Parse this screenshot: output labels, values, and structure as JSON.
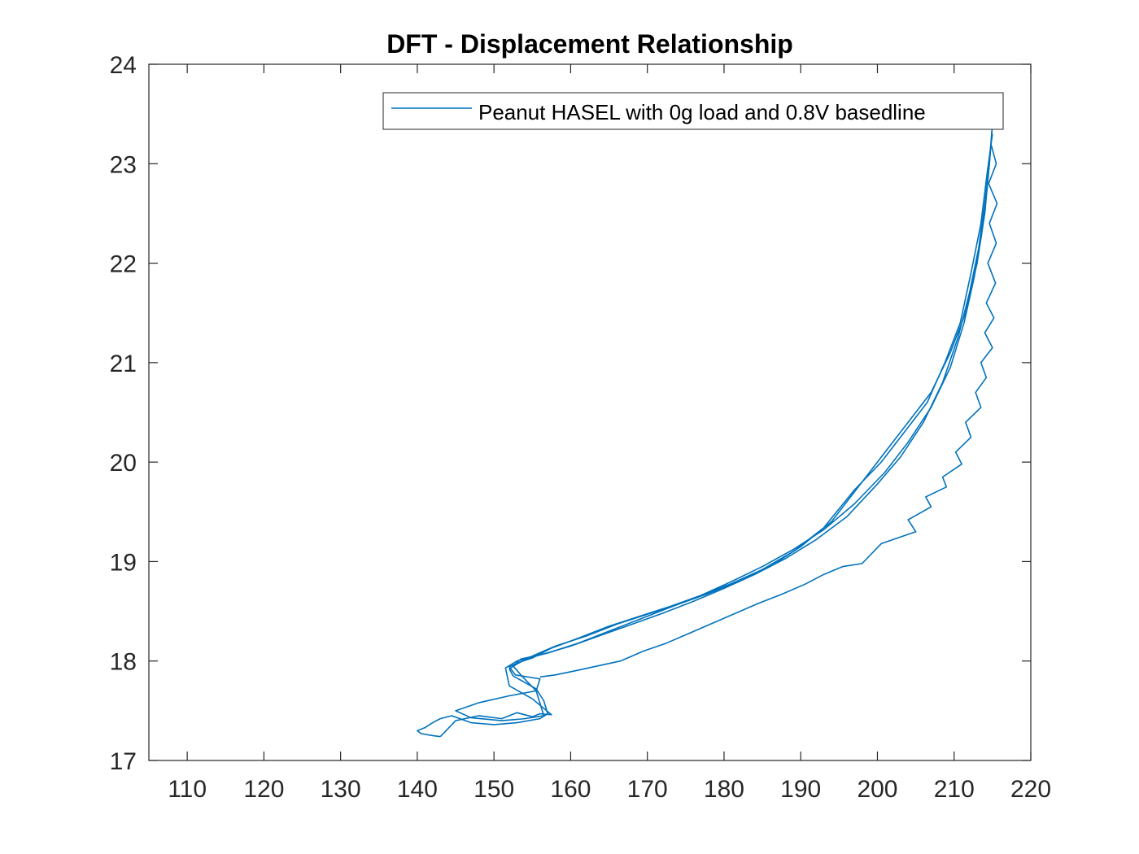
{
  "chart_data": {
    "type": "line",
    "title": "DFT - Displacement Relationship",
    "xlabel": "",
    "ylabel": "",
    "xlim": [
      105,
      220
    ],
    "ylim": [
      17,
      24
    ],
    "xticks": [
      110,
      120,
      130,
      140,
      150,
      160,
      170,
      180,
      190,
      200,
      210,
      220
    ],
    "yticks": [
      17,
      18,
      19,
      20,
      21,
      22,
      23,
      24
    ],
    "grid": false,
    "legend_position": "top-right",
    "colors": {
      "series": "#0072BD",
      "axis": "#262626"
    },
    "series": [
      {
        "name": "Peanut HASEL with 0g load and 0.8V basedline",
        "cycles": [
          {
            "x": [
              215.0,
              214.6,
              214.0,
              213.0,
              211.5,
              209.5,
              207.0,
              204.0,
              201.0,
              198.0,
              194.0,
              190.0,
              186.0,
              182.0,
              178.0,
              174.0,
              170.0,
              166.0,
              162.0,
              158.0,
              155.0,
              153.0,
              152.0,
              152.5,
              155.5,
              156.5,
              157.0,
              156.0,
              153.0,
              150.0,
              147.0,
              144.5,
              143.0,
              142.0,
              141.0,
              140.0,
              140.5,
              142.0,
              143.0
            ],
            "y": [
              23.4,
              23.0,
              22.5,
              22.0,
              21.5,
              21.1,
              20.7,
              20.4,
              20.1,
              19.8,
              19.4,
              19.15,
              18.95,
              18.8,
              18.68,
              18.57,
              18.47,
              18.37,
              18.25,
              18.15,
              18.05,
              17.97,
              17.92,
              17.85,
              17.72,
              17.6,
              17.47,
              17.42,
              17.38,
              17.36,
              17.38,
              17.45,
              17.42,
              17.38,
              17.33,
              17.3,
              17.27,
              17.25,
              17.24
            ]
          },
          {
            "x": [
              143.0,
              145.0,
              148.0,
              151.0,
              153.0,
              155.0,
              156.0,
              157.5,
              155.0,
              152.0,
              151.5,
              153.0,
              156.0,
              160.0,
              164.0,
              168.0,
              172.0,
              176.0,
              180.0,
              184.0,
              188.0,
              192.0,
              196.0,
              200.0,
              203.0,
              206.0,
              208.5,
              210.5,
              212.0,
              213.2,
              214.0,
              214.6,
              215.0
            ],
            "y": [
              17.24,
              17.4,
              17.45,
              17.42,
              17.48,
              17.44,
              17.47,
              17.46,
              17.62,
              17.75,
              17.93,
              18.0,
              18.06,
              18.15,
              18.26,
              18.37,
              18.48,
              18.6,
              18.73,
              18.87,
              19.03,
              19.22,
              19.45,
              19.78,
              20.05,
              20.4,
              20.8,
              21.25,
              21.7,
              22.15,
              22.6,
              23.0,
              23.4
            ]
          },
          {
            "x": [
              215.0,
              214.3,
              213.5,
              212.2,
              210.8,
              208.8,
              206.5,
              203.5,
              200.5,
              197.0,
              193.0,
              189.0,
              185.0,
              181.0,
              177.0,
              173.0,
              169.0,
              165.0,
              161.0,
              157.5,
              155.0,
              153.0,
              152.0,
              152.8,
              156.0,
              155.5,
              152.0,
              148.0,
              145.0,
              147.0,
              151.0,
              154.0,
              156.5
            ],
            "y": [
              23.3,
              22.9,
              22.4,
              21.9,
              21.4,
              21.0,
              20.6,
              20.3,
              20.0,
              19.72,
              19.34,
              19.1,
              18.92,
              18.78,
              18.66,
              18.55,
              18.45,
              18.35,
              18.23,
              18.13,
              18.03,
              17.98,
              17.94,
              17.86,
              17.82,
              17.7,
              17.65,
              17.58,
              17.5,
              17.43,
              17.4,
              17.42,
              17.45
            ]
          },
          {
            "x": [
              156.5,
              155.5,
              153.5,
              152.5,
              153.5,
              157.0,
              161.0,
              165.0,
              169.0,
              173.0,
              177.0,
              181.0,
              185.0,
              189.0,
              193.0,
              197.0,
              201.0,
              204.0,
              207.0,
              209.5,
              211.3,
              212.6,
              213.6,
              214.3,
              214.8
            ],
            "y": [
              17.45,
              17.7,
              17.86,
              17.95,
              18.02,
              18.08,
              18.18,
              18.3,
              18.42,
              18.54,
              18.66,
              18.8,
              18.95,
              19.12,
              19.32,
              19.58,
              19.9,
              20.2,
              20.55,
              20.95,
              21.4,
              21.85,
              22.3,
              22.75,
              23.2
            ]
          },
          {
            "x": [
              214.8,
              215.5,
              214.5,
              215.6,
              214.6,
              215.5,
              214.4,
              215.4,
              214.2,
              215.2,
              214.0,
              215.0,
              213.5,
              214.2,
              212.8,
              213.5,
              211.5,
              212.2,
              210.2,
              211.0,
              208.5,
              209.0,
              206.3,
              207.0,
              204.0,
              205.0,
              200.5,
              198.0,
              195.5,
              193.0,
              190.5,
              187.5,
              184.5,
              181.5,
              178.5,
              175.5,
              172.5,
              169.5,
              166.5,
              163.5,
              160.5,
              158.0,
              156.0
            ],
            "y": [
              23.2,
              23.0,
              22.8,
              22.6,
              22.4,
              22.2,
              22.0,
              21.8,
              21.6,
              21.45,
              21.3,
              21.15,
              21.0,
              20.85,
              20.7,
              20.55,
              20.4,
              20.25,
              20.1,
              19.98,
              19.85,
              19.75,
              19.65,
              19.55,
              19.42,
              19.3,
              19.18,
              18.98,
              18.95,
              18.87,
              18.77,
              18.67,
              18.58,
              18.48,
              18.38,
              18.28,
              18.18,
              18.1,
              18.0,
              17.95,
              17.9,
              17.86,
              17.84
            ]
          }
        ]
      }
    ]
  }
}
